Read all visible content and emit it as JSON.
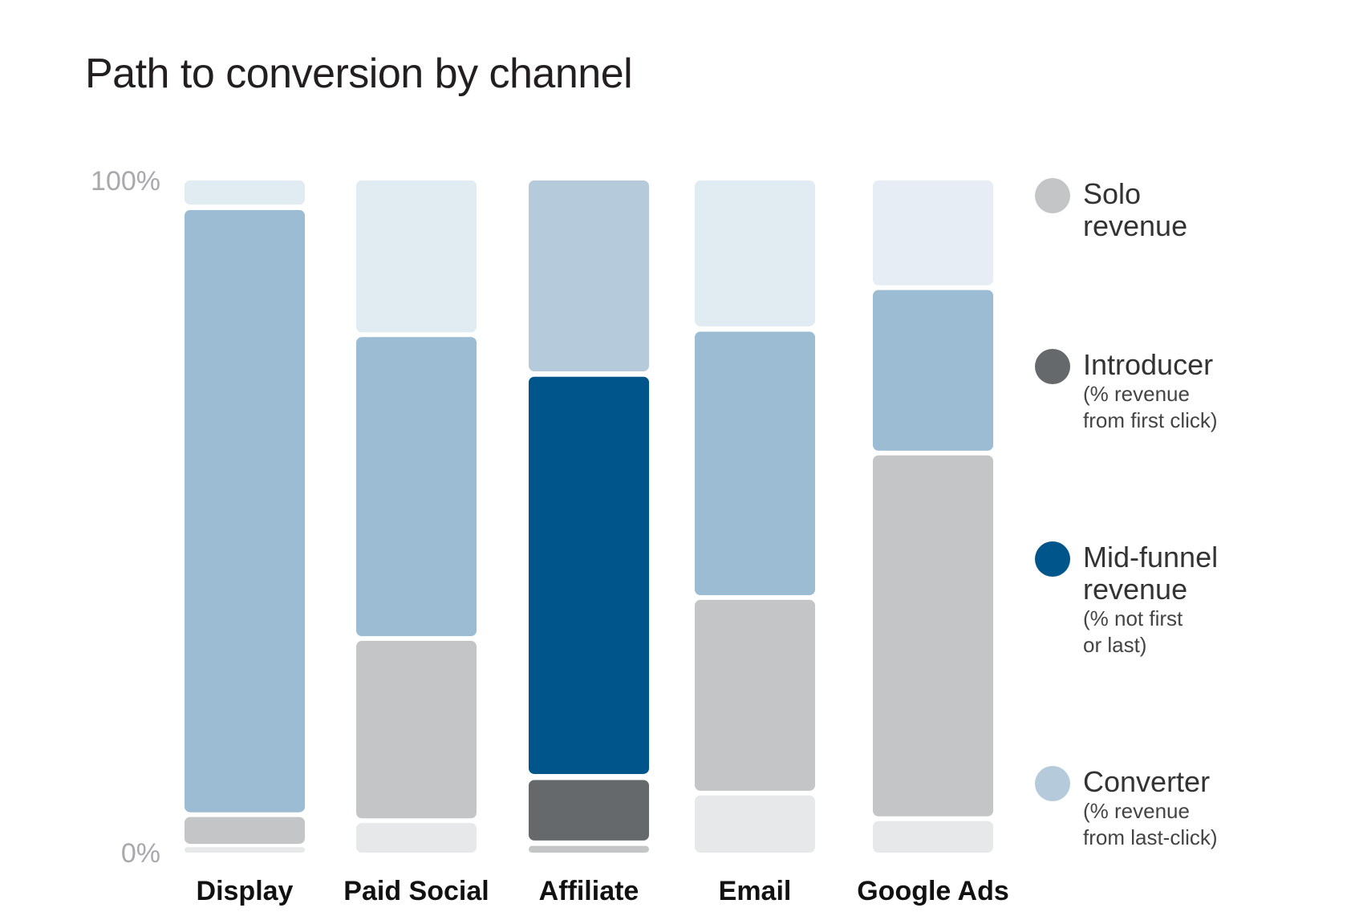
{
  "chart_data": {
    "type": "bar",
    "stacked": true,
    "title": "Path to conversion by channel",
    "xlabel": "",
    "ylabel": "",
    "ylim": [
      0,
      100
    ],
    "yticks": [
      "0%",
      "100%"
    ],
    "categories": [
      "Display",
      "Paid Social",
      "Affiliate",
      "Email",
      "Google Ads"
    ],
    "series": [
      {
        "name": "Solo revenue",
        "values": [
          4,
          27,
          1,
          29,
          54
        ],
        "color": "#c4c5c7"
      },
      {
        "name": "Introducer",
        "values": [
          0,
          0,
          9,
          0,
          0
        ],
        "color": "#66696c"
      },
      {
        "name": "Mid-funnel revenue",
        "values": [
          0,
          0,
          59,
          0,
          0
        ],
        "color": "#00558a"
      },
      {
        "name": "Converter",
        "values": [
          90,
          45,
          30,
          39,
          24
        ],
        "color": "#9bbcd2"
      }
    ],
    "segments": [
      [
        {
          "series": "Solo revenue",
          "from": 0,
          "to": 0.8,
          "color": "#e7e8ea"
        },
        {
          "series": "Solo revenue",
          "from": 1.3,
          "to": 5.3,
          "color": "#c4c5c7"
        },
        {
          "series": "Converter",
          "from": 6,
          "to": 95.6,
          "color": "#9bbcd2"
        },
        {
          "series": "Converter",
          "from": 96.4,
          "to": 100,
          "color": "#e1ebf2"
        }
      ],
      [
        {
          "series": "Solo revenue",
          "from": 0,
          "to": 4.4,
          "color": "#e7e8ea"
        },
        {
          "series": "Solo revenue",
          "from": 5.1,
          "to": 31.5,
          "color": "#c4c5c7"
        },
        {
          "series": "Converter",
          "from": 32.2,
          "to": 76.7,
          "color": "#9bbcd2"
        },
        {
          "series": "Converter",
          "from": 77.4,
          "to": 100,
          "color": "#e1ebf2"
        }
      ],
      [
        {
          "series": "Solo revenue",
          "from": 0,
          "to": 1,
          "color": "#c4c5c7"
        },
        {
          "series": "Introducer",
          "from": 1.8,
          "to": 10.8,
          "color": "#66696c"
        },
        {
          "series": "Mid-funnel revenue",
          "from": 11.7,
          "to": 70.8,
          "color": "#00558a"
        },
        {
          "series": "Converter",
          "from": 71.6,
          "to": 100,
          "color": "#b5cbdb"
        }
      ],
      [
        {
          "series": "Solo revenue",
          "from": 0,
          "to": 8.5,
          "color": "#e7e8ea"
        },
        {
          "series": "Solo revenue",
          "from": 9.2,
          "to": 37.6,
          "color": "#c4c5c7"
        },
        {
          "series": "Converter",
          "from": 38.3,
          "to": 77.5,
          "color": "#9bbcd2"
        },
        {
          "series": "Converter",
          "from": 78.3,
          "to": 100,
          "color": "#e1ebf2"
        }
      ],
      [
        {
          "series": "Solo revenue",
          "from": 0,
          "to": 4.7,
          "color": "#e7e8ea"
        },
        {
          "series": "Solo revenue",
          "from": 5.4,
          "to": 59.1,
          "color": "#c4c5c7"
        },
        {
          "series": "Converter",
          "from": 59.8,
          "to": 83.7,
          "color": "#9bbcd2"
        },
        {
          "series": "Converter",
          "from": 84.4,
          "to": 100,
          "color": "#e6edf4"
        }
      ]
    ],
    "legend_position": "right",
    "grid": false
  },
  "legend": [
    {
      "key": "solo",
      "main": "Solo revenue",
      "main_lines": [
        "Solo",
        "revenue"
      ],
      "sub_lines": [],
      "color": "#c4c5c7"
    },
    {
      "key": "introducer",
      "main": "Introducer",
      "main_lines": [
        "Introducer"
      ],
      "sub_lines": [
        "(% revenue",
        "from first click)"
      ],
      "color": "#66696c"
    },
    {
      "key": "midfunnel",
      "main": "Mid-funnel revenue",
      "main_lines": [
        "Mid-funnel",
        "revenue"
      ],
      "sub_lines": [
        "(% not first",
        "or last)"
      ],
      "color": "#00558a"
    },
    {
      "key": "converter",
      "main": "Converter",
      "main_lines": [
        "Converter"
      ],
      "sub_lines": [
        "(% revenue",
        "from last-click)"
      ],
      "color": "#b5cbdb"
    }
  ]
}
